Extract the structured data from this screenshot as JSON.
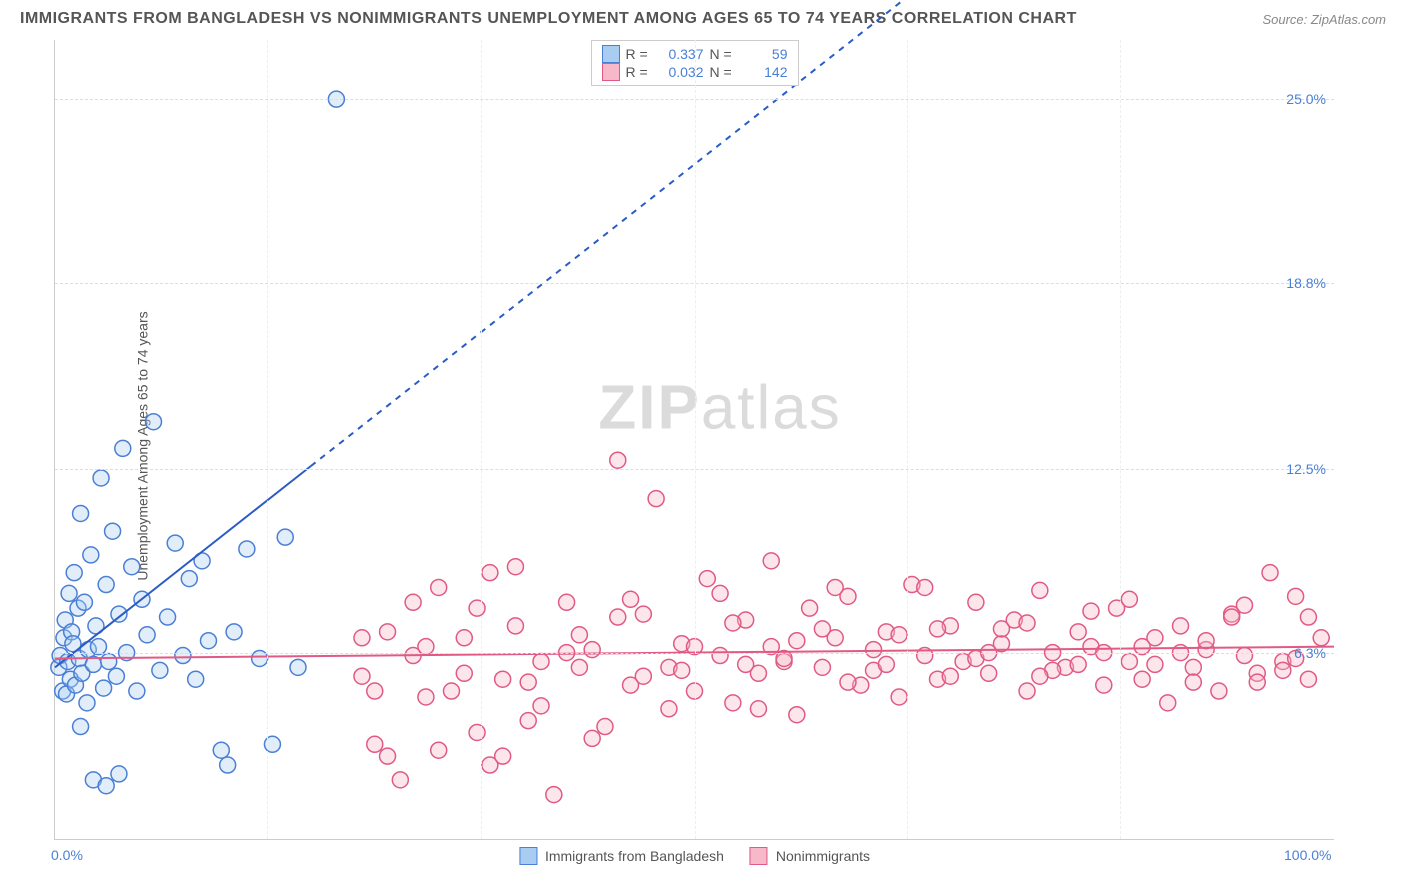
{
  "title": "IMMIGRANTS FROM BANGLADESH VS NONIMMIGRANTS UNEMPLOYMENT AMONG AGES 65 TO 74 YEARS CORRELATION CHART",
  "source": "Source: ZipAtlas.com",
  "ylabel": "Unemployment Among Ages 65 to 74 years",
  "watermark_bold": "ZIP",
  "watermark_rest": "atlas",
  "chart": {
    "type": "scatter",
    "xlim": [
      0,
      100
    ],
    "ylim": [
      0,
      27
    ],
    "yticks": [
      {
        "v": 6.3,
        "label": "6.3%"
      },
      {
        "v": 12.5,
        "label": "12.5%"
      },
      {
        "v": 18.8,
        "label": "18.8%"
      },
      {
        "v": 25.0,
        "label": "25.0%"
      }
    ],
    "xticks": [
      {
        "v": 0,
        "label": "0.0%"
      },
      {
        "v": 100,
        "label": "100.0%"
      }
    ],
    "xgrids": [
      16.6,
      33.3,
      50,
      66.6,
      83.3
    ],
    "background_color": "#ffffff",
    "grid_color": "#dddddd",
    "marker_radius": 8,
    "series": [
      {
        "name": "Immigrants from Bangladesh",
        "fill": "#a9cdf0",
        "stroke": "#4a7fd6",
        "R": "0.337",
        "N": "59",
        "trend": {
          "intercept": 5.8,
          "slope": 0.34,
          "solid_xmax": 20,
          "dash_xmax": 80,
          "color": "#2b5cc4",
          "width": 2
        },
        "points": [
          [
            0.3,
            5.8
          ],
          [
            0.4,
            6.2
          ],
          [
            0.6,
            5.0
          ],
          [
            0.7,
            6.8
          ],
          [
            0.8,
            7.4
          ],
          [
            0.9,
            4.9
          ],
          [
            1.0,
            6.0
          ],
          [
            1.1,
            8.3
          ],
          [
            1.2,
            5.4
          ],
          [
            1.3,
            7.0
          ],
          [
            1.4,
            6.6
          ],
          [
            1.5,
            9.0
          ],
          [
            1.6,
            5.2
          ],
          [
            1.8,
            7.8
          ],
          [
            1.9,
            6.1
          ],
          [
            2.0,
            11.0
          ],
          [
            2.1,
            5.6
          ],
          [
            2.3,
            8.0
          ],
          [
            2.5,
            4.6
          ],
          [
            2.6,
            6.4
          ],
          [
            2.8,
            9.6
          ],
          [
            3.0,
            5.9
          ],
          [
            3.2,
            7.2
          ],
          [
            3.4,
            6.5
          ],
          [
            3.6,
            12.2
          ],
          [
            3.8,
            5.1
          ],
          [
            4.0,
            8.6
          ],
          [
            4.2,
            6.0
          ],
          [
            4.5,
            10.4
          ],
          [
            4.8,
            5.5
          ],
          [
            5.0,
            7.6
          ],
          [
            5.3,
            13.2
          ],
          [
            5.6,
            6.3
          ],
          [
            6.0,
            9.2
          ],
          [
            6.4,
            5.0
          ],
          [
            6.8,
            8.1
          ],
          [
            7.2,
            6.9
          ],
          [
            7.7,
            14.1
          ],
          [
            8.2,
            5.7
          ],
          [
            8.8,
            7.5
          ],
          [
            9.4,
            10.0
          ],
          [
            10.0,
            6.2
          ],
          [
            10.5,
            8.8
          ],
          [
            11.0,
            5.4
          ],
          [
            11.5,
            9.4
          ],
          [
            12.0,
            6.7
          ],
          [
            13.0,
            3.0
          ],
          [
            13.5,
            2.5
          ],
          [
            14.0,
            7.0
          ],
          [
            15.0,
            9.8
          ],
          [
            16.0,
            6.1
          ],
          [
            17.0,
            3.2
          ],
          [
            18.0,
            10.2
          ],
          [
            19.0,
            5.8
          ],
          [
            2.0,
            3.8
          ],
          [
            3.0,
            2.0
          ],
          [
            4.0,
            1.8
          ],
          [
            5.0,
            2.2
          ],
          [
            22.0,
            25.0
          ]
        ]
      },
      {
        "name": "Nonimmigrants",
        "fill": "#f7b8c9",
        "stroke": "#e05a84",
        "R": "0.032",
        "N": "142",
        "trend": {
          "intercept": 6.1,
          "slope": 0.004,
          "solid_xmax": 100,
          "dash_xmax": 100,
          "color": "#e05a84",
          "width": 2
        },
        "points": [
          [
            24,
            5.5
          ],
          [
            25,
            3.2
          ],
          [
            26,
            7.0
          ],
          [
            27,
            2.0
          ],
          [
            28,
            6.2
          ],
          [
            29,
            4.8
          ],
          [
            30,
            8.5
          ],
          [
            31,
            5.0
          ],
          [
            32,
            6.8
          ],
          [
            33,
            3.6
          ],
          [
            34,
            9.0
          ],
          [
            35,
            5.4
          ],
          [
            36,
            7.2
          ],
          [
            37,
            4.0
          ],
          [
            38,
            6.0
          ],
          [
            39,
            1.5
          ],
          [
            40,
            8.0
          ],
          [
            41,
            5.8
          ],
          [
            42,
            6.4
          ],
          [
            43,
            3.8
          ],
          [
            44,
            12.8
          ],
          [
            45,
            5.2
          ],
          [
            46,
            7.6
          ],
          [
            47,
            11.5
          ],
          [
            48,
            4.4
          ],
          [
            49,
            6.6
          ],
          [
            50,
            5.0
          ],
          [
            51,
            8.8
          ],
          [
            52,
            6.2
          ],
          [
            53,
            4.6
          ],
          [
            54,
            7.4
          ],
          [
            55,
            5.6
          ],
          [
            56,
            9.4
          ],
          [
            57,
            6.0
          ],
          [
            58,
            4.2
          ],
          [
            59,
            7.8
          ],
          [
            60,
            5.8
          ],
          [
            61,
            6.8
          ],
          [
            62,
            8.2
          ],
          [
            63,
            5.2
          ],
          [
            64,
            6.4
          ],
          [
            65,
            7.0
          ],
          [
            66,
            4.8
          ],
          [
            67,
            8.6
          ],
          [
            68,
            6.2
          ],
          [
            69,
            5.4
          ],
          [
            70,
            7.2
          ],
          [
            71,
            6.0
          ],
          [
            72,
            8.0
          ],
          [
            73,
            5.6
          ],
          [
            74,
            6.6
          ],
          [
            75,
            7.4
          ],
          [
            76,
            5.0
          ],
          [
            77,
            8.4
          ],
          [
            78,
            6.3
          ],
          [
            79,
            5.8
          ],
          [
            80,
            7.0
          ],
          [
            81,
            6.5
          ],
          [
            82,
            5.2
          ],
          [
            83,
            7.8
          ],
          [
            84,
            6.0
          ],
          [
            85,
            5.4
          ],
          [
            86,
            6.8
          ],
          [
            87,
            4.6
          ],
          [
            88,
            7.2
          ],
          [
            89,
            5.8
          ],
          [
            90,
            6.4
          ],
          [
            91,
            5.0
          ],
          [
            92,
            7.6
          ],
          [
            93,
            6.2
          ],
          [
            94,
            5.6
          ],
          [
            95,
            9.0
          ],
          [
            96,
            6.0
          ],
          [
            97,
            8.2
          ],
          [
            98,
            5.4
          ],
          [
            99,
            6.8
          ],
          [
            26,
            2.8
          ],
          [
            30,
            3.0
          ],
          [
            34,
            2.5
          ],
          [
            38,
            4.5
          ],
          [
            42,
            3.4
          ],
          [
            46,
            5.5
          ],
          [
            50,
            6.5
          ],
          [
            54,
            5.9
          ],
          [
            58,
            6.7
          ],
          [
            62,
            5.3
          ],
          [
            66,
            6.9
          ],
          [
            70,
            5.5
          ],
          [
            74,
            7.1
          ],
          [
            78,
            5.7
          ],
          [
            82,
            6.3
          ],
          [
            86,
            5.9
          ],
          [
            90,
            6.7
          ],
          [
            94,
            5.3
          ],
          [
            98,
            7.5
          ],
          [
            24,
            6.8
          ],
          [
            28,
            8.0
          ],
          [
            32,
            5.6
          ],
          [
            36,
            9.2
          ],
          [
            40,
            6.3
          ],
          [
            44,
            7.5
          ],
          [
            48,
            5.8
          ],
          [
            52,
            8.3
          ],
          [
            56,
            6.5
          ],
          [
            60,
            7.1
          ],
          [
            64,
            5.7
          ],
          [
            68,
            8.5
          ],
          [
            72,
            6.1
          ],
          [
            76,
            7.3
          ],
          [
            80,
            5.9
          ],
          [
            84,
            8.1
          ],
          [
            88,
            6.3
          ],
          [
            92,
            7.5
          ],
          [
            96,
            5.7
          ],
          [
            25,
            5.0
          ],
          [
            29,
            6.5
          ],
          [
            33,
            7.8
          ],
          [
            37,
            5.3
          ],
          [
            41,
            6.9
          ],
          [
            45,
            8.1
          ],
          [
            49,
            5.7
          ],
          [
            53,
            7.3
          ],
          [
            57,
            6.1
          ],
          [
            61,
            8.5
          ],
          [
            65,
            5.9
          ],
          [
            69,
            7.1
          ],
          [
            73,
            6.3
          ],
          [
            77,
            5.5
          ],
          [
            81,
            7.7
          ],
          [
            85,
            6.5
          ],
          [
            89,
            5.3
          ],
          [
            93,
            7.9
          ],
          [
            97,
            6.1
          ],
          [
            35,
            2.8
          ],
          [
            55,
            4.4
          ]
        ]
      }
    ]
  },
  "legend_bottom": [
    {
      "label": "Immigrants from Bangladesh",
      "fill": "#a9cdf0",
      "stroke": "#4a7fd6"
    },
    {
      "label": "Nonimmigrants",
      "fill": "#f7b8c9",
      "stroke": "#e05a84"
    }
  ]
}
